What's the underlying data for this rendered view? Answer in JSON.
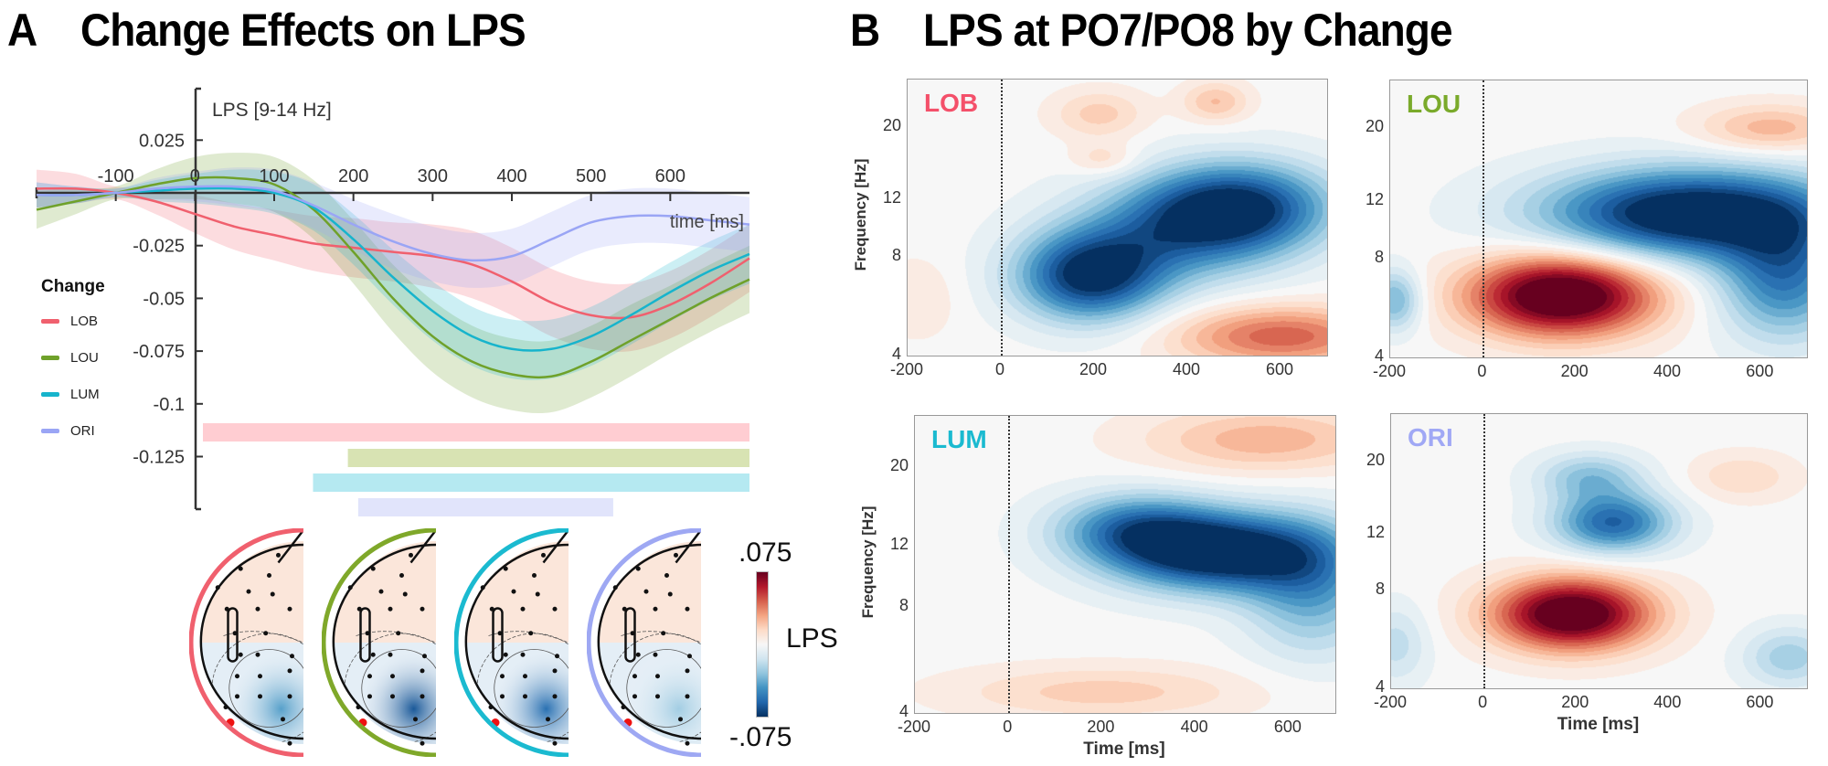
{
  "panel_a": {
    "letter": "A",
    "title": "Change Effects on LPS",
    "legend_title": "Change",
    "colorbar": {
      "max_label": ".075",
      "min_label": "-.075",
      "label": "LPS",
      "range": [
        -0.075,
        0.075
      ],
      "colormap": "RdBu_r"
    },
    "topoplots": [
      {
        "condition": "LOB",
        "color": "#f0606e",
        "marked_electrode": "PO7",
        "occipital_min_strength": 0.55
      },
      {
        "condition": "LOU",
        "color": "#7fa82a",
        "marked_electrode": "PO7",
        "occipital_min_strength": 0.85
      },
      {
        "condition": "LUM",
        "color": "#1bbad0",
        "marked_electrode": "PO7",
        "occipital_min_strength": 0.75
      },
      {
        "condition": "ORI",
        "color": "#9ea8f3",
        "marked_electrode": "PO7",
        "occipital_min_strength": 0.35
      }
    ]
  },
  "panel_b": {
    "letter": "B",
    "title": "LPS at PO7/PO8 by Change",
    "xlabel": "Time [ms]",
    "ylabel": "Frequency [Hz]",
    "xticks": [
      "-200",
      "0",
      "200",
      "400",
      "600"
    ],
    "yticks": [
      "4",
      "8",
      "12",
      "20"
    ]
  },
  "chart_data": [
    {
      "type": "line",
      "title": "Change Effects on LPS",
      "ylabel": "LPS [9-14 Hz]",
      "xlabel": "time [ms]",
      "xlim": [
        -200,
        700
      ],
      "ylim": [
        -0.145,
        0.045
      ],
      "xticks": [
        -100,
        0,
        100,
        200,
        300,
        400,
        500,
        600
      ],
      "xtick_labels": [
        "-100",
        "0",
        "100",
        "200",
        "300",
        "400",
        "500",
        "600"
      ],
      "yticks": [
        0.025,
        -0.025,
        -0.05,
        -0.075,
        -0.1,
        -0.125
      ],
      "ytick_labels": [
        "0.025",
        "-0.025",
        "-0.05",
        "-0.075",
        "-0.1",
        "-0.125"
      ],
      "legend_position": "left",
      "x": [
        -200,
        -150,
        -100,
        -50,
        0,
        50,
        100,
        150,
        200,
        250,
        300,
        350,
        400,
        450,
        500,
        550,
        600,
        650,
        700
      ],
      "series": [
        {
          "name": "LOB",
          "color": "#f0606e",
          "values": [
            0.002,
            0.002,
            0.0,
            -0.004,
            -0.01,
            -0.016,
            -0.02,
            -0.024,
            -0.026,
            -0.028,
            -0.03,
            -0.034,
            -0.042,
            -0.052,
            -0.058,
            -0.059,
            -0.053,
            -0.043,
            -0.031
          ],
          "ci": [
            0.009,
            0.007,
            0.003,
            0.006,
            0.009,
            0.011,
            0.012,
            0.013,
            0.014,
            0.014,
            0.015,
            0.016,
            0.016,
            0.016,
            0.016,
            0.016,
            0.016,
            0.016,
            0.016
          ]
        },
        {
          "name": "LOU",
          "color": "#6fa12a",
          "values": [
            -0.008,
            -0.004,
            0.0,
            0.004,
            0.007,
            0.007,
            0.004,
            -0.008,
            -0.028,
            -0.05,
            -0.068,
            -0.08,
            -0.086,
            -0.087,
            -0.08,
            -0.07,
            -0.06,
            -0.05,
            -0.041
          ],
          "ci": [
            0.009,
            0.006,
            0.003,
            0.007,
            0.01,
            0.012,
            0.013,
            0.014,
            0.015,
            0.016,
            0.017,
            0.017,
            0.017,
            0.017,
            0.017,
            0.017,
            0.016,
            0.016,
            0.016
          ]
        },
        {
          "name": "LUM",
          "color": "#17b4cc",
          "values": [
            -0.001,
            -0.001,
            0.0,
            0.001,
            0.002,
            0.002,
            0.0,
            -0.007,
            -0.022,
            -0.04,
            -0.056,
            -0.068,
            -0.074,
            -0.074,
            -0.068,
            -0.058,
            -0.047,
            -0.037,
            -0.029
          ],
          "ci": [
            0.006,
            0.004,
            0.002,
            0.005,
            0.007,
            0.009,
            0.01,
            0.011,
            0.012,
            0.013,
            0.014,
            0.014,
            0.014,
            0.014,
            0.014,
            0.014,
            0.014,
            0.014,
            0.014
          ]
        },
        {
          "name": "ORI",
          "color": "#9aa5f5",
          "values": [
            -0.001,
            -0.001,
            0.0,
            0.002,
            0.003,
            0.003,
            0.001,
            -0.006,
            -0.015,
            -0.023,
            -0.029,
            -0.032,
            -0.03,
            -0.022,
            -0.014,
            -0.011,
            -0.011,
            -0.013,
            -0.015
          ],
          "ci": [
            0.006,
            0.004,
            0.002,
            0.005,
            0.007,
            0.009,
            0.01,
            0.011,
            0.012,
            0.013,
            0.013,
            0.013,
            0.013,
            0.013,
            0.013,
            0.013,
            0.013,
            0.013,
            0.013
          ]
        }
      ],
      "significance_bars": [
        {
          "name": "LOB",
          "color": "#ffcdd2",
          "start_ms": 10,
          "end_ms": 700
        },
        {
          "name": "LOU",
          "color": "#d8e3b3",
          "start_ms": 193,
          "end_ms": 700
        },
        {
          "name": "LUM",
          "color": "#b5e9f1",
          "start_ms": 149,
          "end_ms": 700
        },
        {
          "name": "ORI",
          "color": "#e1e4fb",
          "start_ms": 206,
          "end_ms": 528
        }
      ]
    },
    {
      "type": "heatmap",
      "title": "LPS at PO7/PO8 by Change",
      "xlabel": "Time [ms]",
      "ylabel": "Frequency [Hz]",
      "xlim": [
        -200,
        700
      ],
      "ylim": [
        4,
        28
      ],
      "yscale": "log",
      "xticks": [
        -200,
        0,
        200,
        400,
        600
      ],
      "yticks": [
        4,
        8,
        12,
        20
      ],
      "onset_line_ms": 0,
      "colormap": "RdBu_r",
      "clim": [
        -0.075,
        0.075
      ],
      "panels": [
        {
          "condition": "LOB",
          "label_color": "#f4506a",
          "position": "top-left",
          "blobs": [
            {
              "t": 190,
              "f": 7,
              "dt": 110,
              "df": 0.22,
              "v": -1.0
            },
            {
              "t": 510,
              "f": 11.5,
              "dt": 140,
              "df": 0.22,
              "v": -0.9
            },
            {
              "t": 380,
              "f": 9.5,
              "dt": 160,
              "df": 0.25,
              "v": -0.55
            },
            {
              "t": 600,
              "f": 4.6,
              "dt": 160,
              "df": 0.15,
              "v": 0.6
            },
            {
              "t": 210,
              "f": 22,
              "dt": 70,
              "df": 0.12,
              "v": 0.25
            },
            {
              "t": 460,
              "f": 24,
              "dt": 50,
              "df": 0.1,
              "v": 0.3
            },
            {
              "t": 220,
              "f": 16,
              "dt": 50,
              "df": 0.08,
              "v": 0.2
            },
            {
              "t": -180,
              "f": 6,
              "dt": 60,
              "df": 0.2,
              "v": 0.12
            }
          ]
        },
        {
          "condition": "LOU",
          "label_color": "#7aaa2b",
          "position": "top-right",
          "blobs": [
            {
              "t": 170,
              "f": 6.2,
              "dt": 140,
              "df": 0.2,
              "v": 1.25
            },
            {
              "t": 450,
              "f": 11,
              "dt": 220,
              "df": 0.22,
              "v": -1.2
            },
            {
              "t": 650,
              "f": 7,
              "dt": 100,
              "df": 0.3,
              "v": -0.7
            },
            {
              "t": -190,
              "f": 6,
              "dt": 40,
              "df": 0.15,
              "v": -0.5
            },
            {
              "t": 620,
              "f": 20,
              "dt": 110,
              "df": 0.12,
              "v": 0.35
            }
          ]
        },
        {
          "condition": "LUM",
          "label_color": "#1bbad0",
          "position": "bottom-left",
          "blobs": [
            {
              "t": 450,
              "f": 11.5,
              "dt": 160,
              "df": 0.18,
              "v": -1.15
            },
            {
              "t": 270,
              "f": 13.5,
              "dt": 120,
              "df": 0.16,
              "v": -0.6
            },
            {
              "t": 650,
              "f": 9,
              "dt": 100,
              "df": 0.3,
              "v": -0.5
            },
            {
              "t": 200,
              "f": 4.6,
              "dt": 220,
              "df": 0.12,
              "v": 0.25
            },
            {
              "t": 550,
              "f": 24,
              "dt": 180,
              "df": 0.15,
              "v": 0.35
            }
          ]
        },
        {
          "condition": "ORI",
          "label_color": "#a0a8f5",
          "position": "bottom-right",
          "blobs": [
            {
              "t": 190,
              "f": 6.8,
              "dt": 120,
              "df": 0.18,
              "v": 1.2
            },
            {
              "t": 280,
              "f": 13,
              "dt": 90,
              "df": 0.15,
              "v": -0.8
            },
            {
              "t": 230,
              "f": 18,
              "dt": 80,
              "df": 0.12,
              "v": -0.4
            },
            {
              "t": 660,
              "f": 5,
              "dt": 70,
              "df": 0.15,
              "v": -0.35
            },
            {
              "t": -190,
              "f": 5.5,
              "dt": 50,
              "df": 0.2,
              "v": -0.25
            },
            {
              "t": 560,
              "f": 18,
              "dt": 80,
              "df": 0.12,
              "v": 0.2
            }
          ]
        }
      ]
    }
  ]
}
